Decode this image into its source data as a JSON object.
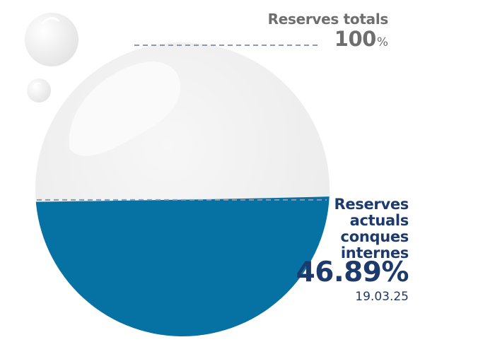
{
  "chart_data": {
    "type": "gauge",
    "value_percent": 46.89,
    "max_percent": 100,
    "total_label": "Reserves totals",
    "total_value": "100",
    "total_unit": "%",
    "current_label_lines": [
      "Reserves",
      "actuals",
      "conques",
      "internes"
    ],
    "current_value": "46.89%",
    "date": "19.03.25"
  },
  "colors": {
    "fill": "#0671a3",
    "empty": "#f1f1f1",
    "guide": "#8a99ad",
    "total_text": "#6e6e6e",
    "current_text": "#1d3a6c"
  }
}
